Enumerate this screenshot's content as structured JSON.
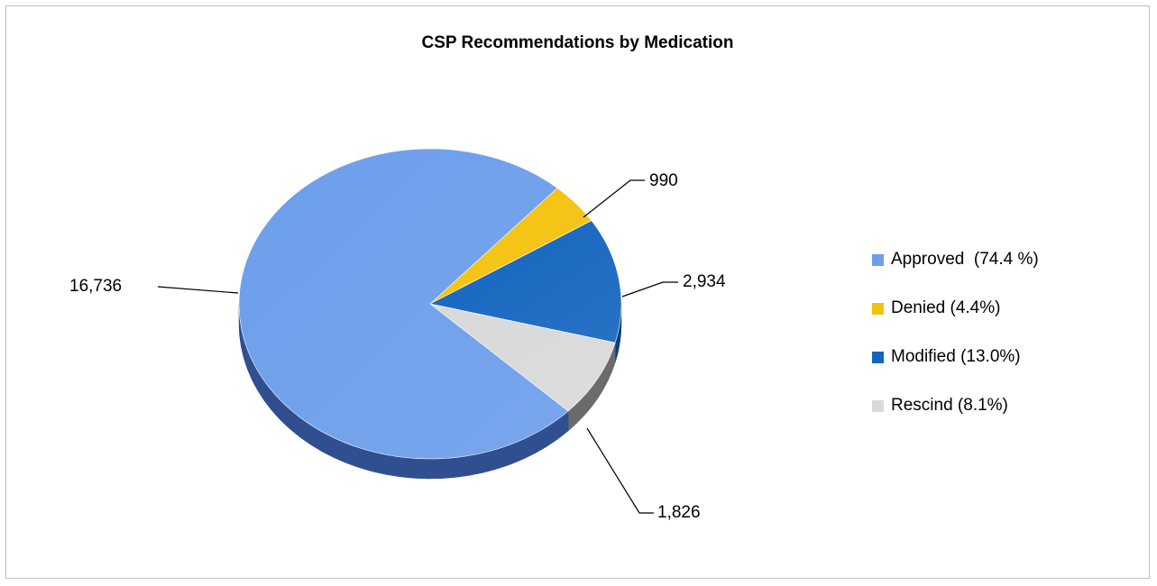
{
  "chart_data": {
    "type": "pie",
    "title": "CSP Recommendations by Medication",
    "categories": [
      "Approved",
      "Denied",
      "Modified",
      "Rescind"
    ],
    "values": [
      16736,
      990,
      2934,
      1826
    ],
    "data_labels": [
      "16,736",
      "990",
      "2,934",
      "1,826"
    ],
    "legend": [
      "Approved  (74.4 %)",
      "Denied (4.4%)",
      "Modified (13.0%)",
      "Rescind (8.1%)"
    ],
    "colors": [
      "#6d9eeb",
      "#f4c20d",
      "#1565c0",
      "#d9d9d9"
    ],
    "side_colors": [
      "#2f4f91",
      "#8a6d00",
      "#0c3d74",
      "#6b6b6b"
    ],
    "legend_position": "right",
    "style": "3d"
  }
}
